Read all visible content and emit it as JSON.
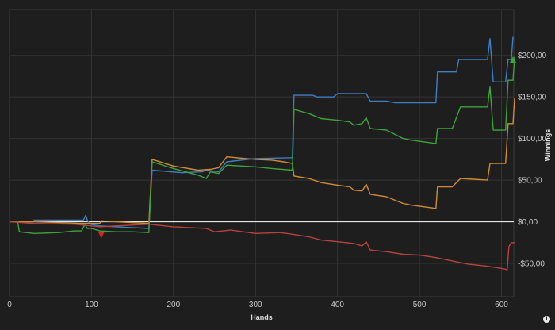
{
  "chart_data": {
    "type": "line",
    "xlabel": "Hands",
    "ylabel": "Winnings",
    "xlim": [
      0,
      615
    ],
    "ylim": [
      -90,
      255
    ],
    "xticks": [
      0,
      100,
      200,
      300,
      400,
      500,
      600
    ],
    "xtick_labels": [
      "0",
      "100",
      "200",
      "300",
      "400",
      "500",
      "600"
    ],
    "yticks": [
      -50,
      0,
      50,
      100,
      150,
      200
    ],
    "ytick_labels": [
      "-$50,00",
      "$0,00",
      "$50,00",
      "$100,00",
      "$150,00",
      "$200,00"
    ],
    "grid": true,
    "legend": "none",
    "zero_line_color": "#e8e8e8",
    "series": [
      {
        "color": "#3f7ec1",
        "points": [
          [
            0,
            0
          ],
          [
            30,
            0
          ],
          [
            30,
            2
          ],
          [
            90,
            2
          ],
          [
            93,
            8
          ],
          [
            95,
            2
          ],
          [
            98,
            -3
          ],
          [
            110,
            -5
          ],
          [
            130,
            -6
          ],
          [
            150,
            -7
          ],
          [
            170,
            -8
          ],
          [
            174,
            62
          ],
          [
            210,
            59
          ],
          [
            235,
            60
          ],
          [
            240,
            62
          ],
          [
            255,
            60
          ],
          [
            265,
            72
          ],
          [
            300,
            76
          ],
          [
            345,
            77
          ],
          [
            347,
            152
          ],
          [
            370,
            152
          ],
          [
            375,
            150
          ],
          [
            395,
            150
          ],
          [
            400,
            154
          ],
          [
            435,
            154
          ],
          [
            440,
            145
          ],
          [
            460,
            145
          ],
          [
            470,
            143
          ],
          [
            520,
            143
          ],
          [
            522,
            180
          ],
          [
            545,
            180
          ],
          [
            548,
            195
          ],
          [
            583,
            195
          ],
          [
            586,
            220
          ],
          [
            590,
            168
          ],
          [
            605,
            168
          ],
          [
            608,
            195
          ],
          [
            612,
            195
          ],
          [
            614,
            222
          ]
        ]
      },
      {
        "color": "#d28b35",
        "points": [
          [
            0,
            0
          ],
          [
            30,
            0
          ],
          [
            90,
            -2
          ],
          [
            110,
            -2
          ],
          [
            112,
            1
          ],
          [
            130,
            0
          ],
          [
            170,
            -2
          ],
          [
            174,
            75
          ],
          [
            200,
            67
          ],
          [
            230,
            62
          ],
          [
            245,
            63
          ],
          [
            255,
            65
          ],
          [
            265,
            78
          ],
          [
            300,
            75
          ],
          [
            320,
            74
          ],
          [
            335,
            72
          ],
          [
            345,
            70
          ],
          [
            347,
            55
          ],
          [
            365,
            52
          ],
          [
            380,
            47
          ],
          [
            400,
            44
          ],
          [
            415,
            42
          ],
          [
            420,
            38
          ],
          [
            430,
            37
          ],
          [
            435,
            45
          ],
          [
            440,
            33
          ],
          [
            460,
            30
          ],
          [
            480,
            22
          ],
          [
            490,
            20
          ],
          [
            520,
            16
          ],
          [
            522,
            42
          ],
          [
            540,
            42
          ],
          [
            550,
            52
          ],
          [
            583,
            50
          ],
          [
            586,
            70
          ],
          [
            605,
            70
          ],
          [
            608,
            118
          ],
          [
            614,
            118
          ],
          [
            616,
            148
          ]
        ]
      },
      {
        "color": "#3ea33b",
        "points": [
          [
            0,
            0
          ],
          [
            10,
            0
          ],
          [
            12,
            -12
          ],
          [
            30,
            -14
          ],
          [
            60,
            -13
          ],
          [
            80,
            -11
          ],
          [
            88,
            -11
          ],
          [
            92,
            -3
          ],
          [
            95,
            -8
          ],
          [
            100,
            -8
          ],
          [
            110,
            -11
          ],
          [
            130,
            -12
          ],
          [
            150,
            -12
          ],
          [
            170,
            -13
          ],
          [
            174,
            72
          ],
          [
            200,
            64
          ],
          [
            230,
            56
          ],
          [
            240,
            52
          ],
          [
            245,
            60
          ],
          [
            255,
            58
          ],
          [
            265,
            68
          ],
          [
            300,
            66
          ],
          [
            320,
            64
          ],
          [
            345,
            62
          ],
          [
            347,
            135
          ],
          [
            365,
            130
          ],
          [
            380,
            124
          ],
          [
            400,
            122
          ],
          [
            415,
            120
          ],
          [
            420,
            116
          ],
          [
            430,
            118
          ],
          [
            435,
            125
          ],
          [
            440,
            112
          ],
          [
            460,
            110
          ],
          [
            480,
            100
          ],
          [
            490,
            98
          ],
          [
            520,
            94
          ],
          [
            522,
            112
          ],
          [
            540,
            112
          ],
          [
            550,
            138
          ],
          [
            583,
            138
          ],
          [
            586,
            162
          ],
          [
            590,
            110
          ],
          [
            605,
            110
          ],
          [
            608,
            170
          ],
          [
            614,
            170
          ],
          [
            616,
            198
          ]
        ]
      },
      {
        "color": "#b8433d",
        "points": [
          [
            0,
            0
          ],
          [
            30,
            -2
          ],
          [
            80,
            -3
          ],
          [
            110,
            -6
          ],
          [
            130,
            -5
          ],
          [
            170,
            -3
          ],
          [
            200,
            -6
          ],
          [
            240,
            -8
          ],
          [
            250,
            -12
          ],
          [
            270,
            -10
          ],
          [
            300,
            -14
          ],
          [
            330,
            -13
          ],
          [
            345,
            -15
          ],
          [
            365,
            -18
          ],
          [
            380,
            -22
          ],
          [
            400,
            -24
          ],
          [
            420,
            -26
          ],
          [
            430,
            -29
          ],
          [
            435,
            -24
          ],
          [
            440,
            -34
          ],
          [
            460,
            -36
          ],
          [
            480,
            -39
          ],
          [
            500,
            -40
          ],
          [
            520,
            -43
          ],
          [
            540,
            -47
          ],
          [
            560,
            -51
          ],
          [
            580,
            -53
          ],
          [
            600,
            -56
          ],
          [
            605,
            -57
          ],
          [
            607,
            -58
          ],
          [
            609,
            -30
          ],
          [
            612,
            -25
          ],
          [
            616,
            -25
          ]
        ]
      }
    ],
    "markers": [
      {
        "shape": "triangle-down",
        "color": "#e02020",
        "x": 112,
        "y": -16
      },
      {
        "shape": "triangle-up",
        "color": "#3ea33b",
        "x": 614,
        "y": 195
      }
    ]
  },
  "info_icon": {
    "glyph": "i",
    "name": "info-icon"
  }
}
